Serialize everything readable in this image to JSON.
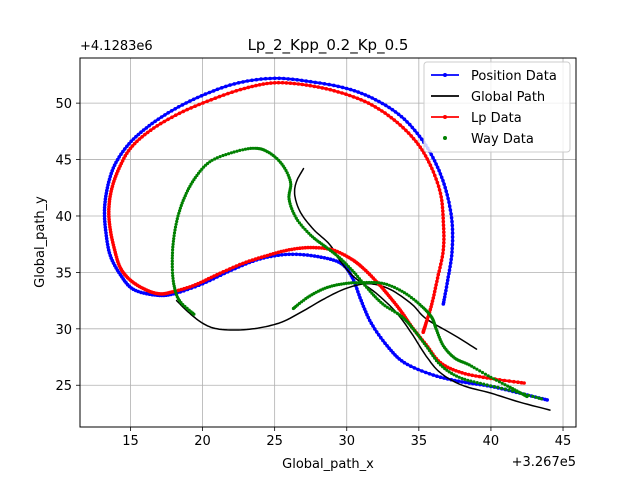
{
  "chart_data": {
    "type": "line",
    "title": "Lp_2_Kpp_0.2_Kp_0.5",
    "xlabel": "Global_path_x",
    "ylabel": "Global_path_y",
    "x_offset_label": "+3.267e5",
    "y_offset_label": "+4.1283e6",
    "xlim": [
      11.5,
      45.9
    ],
    "ylim": [
      21.3,
      54.0
    ],
    "xticks": [
      15,
      20,
      25,
      30,
      35,
      40,
      45
    ],
    "yticks": [
      25,
      30,
      35,
      40,
      45,
      50
    ],
    "grid": true,
    "legend_position": "top-right",
    "series": [
      {
        "name": "Position Data",
        "color": "#0000ff",
        "style": "line-marker",
        "points": [
          [
            43.9,
            23.7
          ],
          [
            42,
            24.3
          ],
          [
            40,
            24.9
          ],
          [
            38,
            25.3
          ],
          [
            36,
            25.9
          ],
          [
            34,
            27.0
          ],
          [
            32.8,
            28.5
          ],
          [
            31.7,
            30.5
          ],
          [
            31,
            32.5
          ],
          [
            30.4,
            34.5
          ],
          [
            29.6,
            35.8
          ],
          [
            28,
            36.4
          ],
          [
            26,
            36.6
          ],
          [
            24,
            36.2
          ],
          [
            22,
            35.2
          ],
          [
            20,
            34.0
          ],
          [
            18,
            33.1
          ],
          [
            16.7,
            33.0
          ],
          [
            15.2,
            33.5
          ],
          [
            14.3,
            34.8
          ],
          [
            13.6,
            36.5
          ],
          [
            13.3,
            38.5
          ],
          [
            13.2,
            40.5
          ],
          [
            13.4,
            42.5
          ],
          [
            13.9,
            44.5
          ],
          [
            14.9,
            46.4
          ],
          [
            16.3,
            48.0
          ],
          [
            18.1,
            49.5
          ],
          [
            20.2,
            50.8
          ],
          [
            22.5,
            51.8
          ],
          [
            25,
            52.2
          ],
          [
            27.5,
            51.9
          ],
          [
            30,
            51.3
          ],
          [
            32,
            50.3
          ],
          [
            33.8,
            48.8
          ],
          [
            35.2,
            46.8
          ],
          [
            36.2,
            44.6
          ],
          [
            36.9,
            42.2
          ],
          [
            37.3,
            39.5
          ],
          [
            37.3,
            36.8
          ],
          [
            37.0,
            34.3
          ],
          [
            36.7,
            32.2
          ]
        ]
      },
      {
        "name": "Global Path",
        "color": "#000000",
        "style": "line",
        "points": [
          [
            44.1,
            22.8
          ],
          [
            42,
            23.5
          ],
          [
            40,
            24.3
          ],
          [
            38,
            25.0
          ],
          [
            36.5,
            26.1
          ],
          [
            35.5,
            27.6
          ],
          [
            34.5,
            29.6
          ],
          [
            33.4,
            31.5
          ],
          [
            32,
            33.2
          ],
          [
            30.5,
            34.6
          ],
          [
            29.5,
            36.1
          ],
          [
            28.8,
            37.5
          ],
          [
            27.7,
            38.8
          ],
          [
            26.8,
            40.3
          ],
          [
            26.4,
            41.8
          ],
          [
            26.5,
            43.0
          ],
          [
            27.0,
            44.2
          ]
        ]
      },
      {
        "name": "Global Path",
        "color": "#000000",
        "style": "line",
        "points": [
          [
            18.2,
            32.5
          ],
          [
            19.0,
            31.5
          ],
          [
            20.0,
            30.5
          ],
          [
            21.0,
            30.0
          ],
          [
            22.5,
            29.9
          ],
          [
            24.0,
            30.1
          ],
          [
            25.5,
            30.6
          ],
          [
            27.0,
            31.6
          ],
          [
            28.5,
            32.7
          ],
          [
            30.0,
            33.6
          ],
          [
            31.5,
            34.0
          ],
          [
            33.0,
            33.5
          ],
          [
            34.5,
            32.2
          ],
          [
            35.5,
            30.9
          ],
          [
            37.5,
            29.4
          ],
          [
            39.0,
            28.2
          ]
        ]
      },
      {
        "name": "Lp Data",
        "color": "#ff0000",
        "style": "line-marker",
        "points": [
          [
            42.3,
            25.2
          ],
          [
            40,
            25.6
          ],
          [
            38,
            26.1
          ],
          [
            36.5,
            27.0
          ],
          [
            35.5,
            28.6
          ],
          [
            34.5,
            30.2
          ],
          [
            33.8,
            31.5
          ],
          [
            33.0,
            32.8
          ],
          [
            32.2,
            34.0
          ],
          [
            31.2,
            35.3
          ],
          [
            30.3,
            36.2
          ],
          [
            29.0,
            37.0
          ],
          [
            27.5,
            37.2
          ],
          [
            26,
            37.0
          ],
          [
            24.5,
            36.5
          ],
          [
            22.8,
            35.8
          ],
          [
            21.0,
            34.8
          ],
          [
            19.5,
            33.9
          ],
          [
            18.0,
            33.3
          ],
          [
            17.0,
            33.1
          ],
          [
            16.0,
            33.5
          ],
          [
            15.0,
            34.3
          ],
          [
            14.3,
            35.4
          ],
          [
            13.9,
            37.0
          ],
          [
            13.6,
            38.8
          ],
          [
            13.5,
            40.6
          ],
          [
            13.7,
            42.4
          ],
          [
            14.2,
            44.2
          ],
          [
            15.0,
            46.0
          ],
          [
            16.4,
            47.6
          ],
          [
            18.4,
            49.1
          ],
          [
            20.6,
            50.3
          ],
          [
            22.9,
            51.3
          ],
          [
            25.0,
            51.8
          ],
          [
            27.2,
            51.6
          ],
          [
            29.4,
            51.0
          ],
          [
            31.5,
            50.0
          ],
          [
            33.3,
            48.5
          ],
          [
            34.8,
            46.6
          ],
          [
            35.8,
            44.5
          ],
          [
            36.5,
            42.0
          ],
          [
            36.7,
            39.5
          ],
          [
            36.7,
            37.0
          ],
          [
            36.3,
            34.5
          ],
          [
            35.9,
            32.2
          ],
          [
            35.5,
            30.5
          ],
          [
            35.3,
            29.7
          ]
        ]
      },
      {
        "name": "Way Data",
        "color": "#008000",
        "style": "marker",
        "points": [
          [
            43.5,
            23.8
          ],
          [
            41.5,
            24.5
          ],
          [
            39.5,
            25.1
          ],
          [
            37.8,
            25.7
          ],
          [
            36.5,
            26.8
          ],
          [
            35.5,
            28.5
          ],
          [
            34.6,
            30.0
          ],
          [
            33.8,
            31.1
          ],
          [
            32.5,
            32.2
          ],
          [
            31.5,
            33.5
          ],
          [
            30.5,
            35.0
          ],
          [
            29.5,
            36.3
          ],
          [
            28.5,
            37.3
          ],
          [
            27.5,
            38.3
          ],
          [
            26.5,
            39.8
          ],
          [
            26.0,
            41.5
          ],
          [
            26.1,
            43.0
          ],
          [
            25.5,
            44.6
          ],
          [
            24.5,
            45.7
          ],
          [
            23.5,
            46.0
          ],
          [
            22.0,
            45.6
          ],
          [
            20.5,
            44.8
          ],
          [
            19.5,
            43.4
          ],
          [
            18.8,
            41.8
          ],
          [
            18.3,
            40.0
          ],
          [
            18.0,
            38.0
          ],
          [
            17.9,
            36.0
          ],
          [
            18.0,
            34.0
          ],
          [
            18.4,
            32.5
          ],
          [
            19.4,
            31.3
          ]
        ]
      },
      {
        "name": "Way Data",
        "color": "#008000",
        "style": "marker",
        "points": [
          [
            26.3,
            31.8
          ],
          [
            27.3,
            32.8
          ],
          [
            28.5,
            33.6
          ],
          [
            29.8,
            34.0
          ],
          [
            31.2,
            34.1
          ],
          [
            32.6,
            34.0
          ],
          [
            34.0,
            33.2
          ],
          [
            35.2,
            32.0
          ],
          [
            35.9,
            31.0
          ],
          [
            36.2,
            30.0
          ],
          [
            36.7,
            28.5
          ],
          [
            37.5,
            27.4
          ],
          [
            38.5,
            26.8
          ],
          [
            40.0,
            25.7
          ],
          [
            41.5,
            24.7
          ],
          [
            42.5,
            24.0
          ]
        ]
      }
    ],
    "legend": [
      {
        "name": "Position Data",
        "color": "#0000ff",
        "style": "line-marker"
      },
      {
        "name": "Global Path",
        "color": "#000000",
        "style": "line"
      },
      {
        "name": "Lp Data",
        "color": "#ff0000",
        "style": "line-marker"
      },
      {
        "name": "Way Data",
        "color": "#008000",
        "style": "marker"
      }
    ]
  }
}
